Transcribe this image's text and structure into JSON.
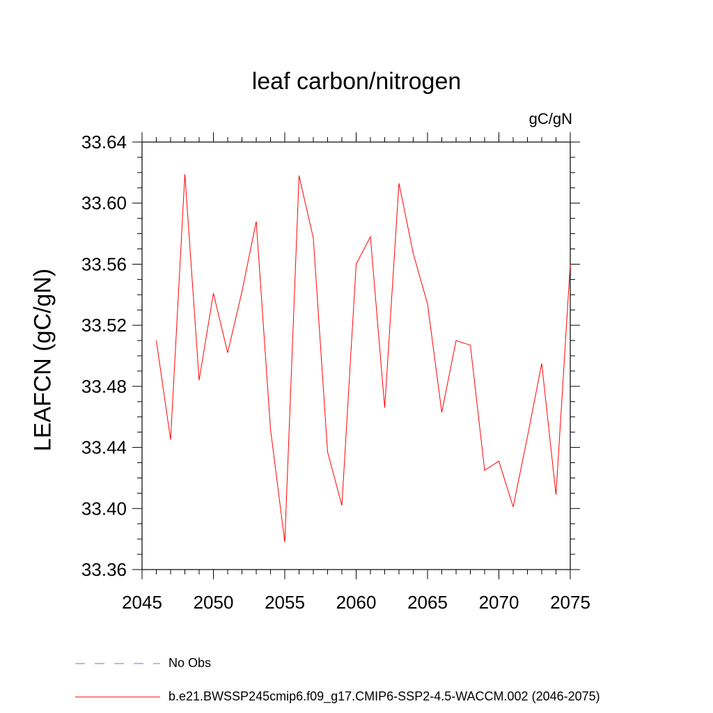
{
  "chart_data": {
    "type": "line",
    "title": "leaf carbon/nitrogen",
    "units": "gC/gN",
    "ylabel": "LEAFCN  (gC/gN)",
    "xlabel": "",
    "xlim": [
      2045,
      2075
    ],
    "ylim": [
      33.36,
      33.64
    ],
    "x_ticks": [
      "2045",
      "2050",
      "2055",
      "2060",
      "2065",
      "2070",
      "2075"
    ],
    "x_tick_values": [
      2045,
      2050,
      2055,
      2060,
      2065,
      2070,
      2075
    ],
    "y_ticks": [
      "33.36",
      "33.40",
      "33.44",
      "33.48",
      "33.52",
      "33.56",
      "33.60",
      "33.64"
    ],
    "y_tick_values": [
      33.36,
      33.4,
      33.44,
      33.48,
      33.52,
      33.56,
      33.6,
      33.64
    ],
    "series": [
      {
        "name": "b.e21.BWSSP245cmip6.f09_g17.CMIP6-SSP2-4.5-WACCM.002 (2046-2075)",
        "color": "#ff0000",
        "x": [
          2046,
          2047,
          2048,
          2049,
          2050,
          2051,
          2052,
          2053,
          2054,
          2055,
          2056,
          2057,
          2058,
          2059,
          2060,
          2061,
          2062,
          2063,
          2064,
          2065,
          2066,
          2067,
          2068,
          2069,
          2070,
          2071,
          2072,
          2073,
          2074,
          2075
        ],
        "y": [
          33.51,
          33.445,
          33.619,
          33.484,
          33.541,
          33.502,
          33.542,
          33.588,
          33.452,
          33.378,
          33.618,
          33.577,
          33.437,
          33.402,
          33.56,
          33.578,
          33.466,
          33.613,
          33.567,
          33.534,
          33.463,
          33.51,
          33.507,
          33.425,
          33.431,
          33.401,
          33.447,
          33.495,
          33.409,
          33.56
        ]
      }
    ],
    "legend": [
      {
        "label": "No Obs",
        "color": "#7a6fb8",
        "style": "dashed"
      },
      {
        "label": "b.e21.BWSSP245cmip6.f09_g17.CMIP6-SSP2-4.5-WACCM.002 (2046-2075)",
        "color": "#ff0000",
        "style": "solid"
      }
    ]
  }
}
